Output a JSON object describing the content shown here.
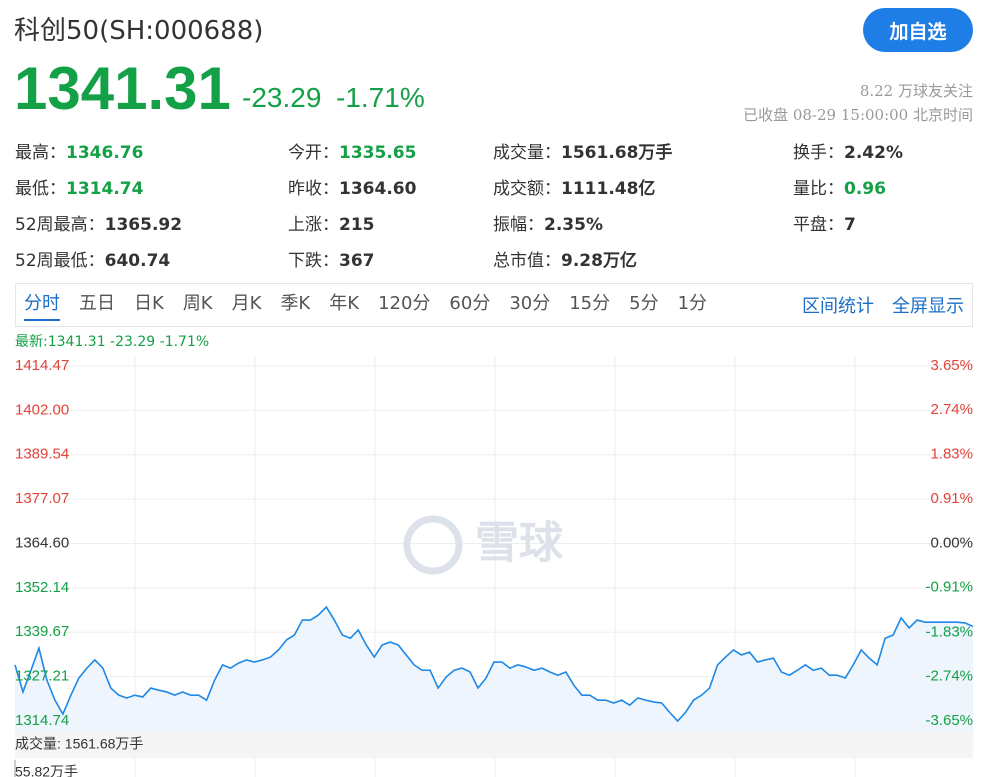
{
  "header": {
    "title": "科创50(SH:000688)",
    "button": "加自选",
    "price": "1341.31",
    "change": "-23.29",
    "change_percent": "-1.71%",
    "followers": "8.22 万球友关注",
    "status": "已收盘 08-29 15:00:00 北京时间"
  },
  "stats": [
    {
      "label": "最高：",
      "value": "1346.76",
      "color": "#14a046"
    },
    {
      "label": "今开：",
      "value": "1335.65",
      "color": "#14a046"
    },
    {
      "label": "成交量：",
      "value": "1561.68万手"
    },
    {
      "label": "换手：",
      "value": "2.42%"
    },
    {
      "label": "最低：",
      "value": "1314.74",
      "color": "#14a046"
    },
    {
      "label": "昨收：",
      "value": "1364.60"
    },
    {
      "label": "成交额：",
      "value": "1111.48亿"
    },
    {
      "label": "量比：",
      "value": "0.96",
      "color": "#14a046"
    },
    {
      "label": "52周最高：",
      "value": "1365.92"
    },
    {
      "label": "上涨：",
      "value": "215"
    },
    {
      "label": "振幅：",
      "value": "2.35%"
    },
    {
      "label": "平盘：",
      "value": "7"
    },
    {
      "label": "52周最低：",
      "value": "640.74"
    },
    {
      "label": "下跌：",
      "value": "367"
    },
    {
      "label": "总市值：",
      "value": "9.28万亿"
    }
  ],
  "tabs": [
    "分时",
    "五日",
    "日K",
    "周K",
    "月K",
    "季K",
    "年K",
    "120分",
    "60分",
    "30分",
    "15分",
    "5分",
    "1分"
  ],
  "tools": [
    "区间统计",
    "全屏显示"
  ],
  "latest": "最新:1341.31 -23.29 -1.71%",
  "watermark": "雪球",
  "chart_data": {
    "type": "line",
    "color": "#1e88e5",
    "grid": true,
    "values": [
      1330.5,
      1322.9,
      1329.0,
      1335.2,
      1326.2,
      1320.6,
      1316.7,
      1322.0,
      1326.8,
      1329.6,
      1331.9,
      1329.6,
      1324.0,
      1322.0,
      1321.2,
      1322.0,
      1321.5,
      1324.0,
      1323.4,
      1322.9,
      1322.0,
      1322.9,
      1322.0,
      1322.0,
      1320.6,
      1326.2,
      1330.5,
      1329.6,
      1331.0,
      1331.9,
      1331.3,
      1331.9,
      1332.7,
      1334.7,
      1337.5,
      1338.9,
      1343.1,
      1343.1,
      1344.5,
      1346.76,
      1343.1,
      1338.9,
      1338.0,
      1340.3,
      1336.1,
      1332.7,
      1336.1,
      1336.9,
      1336.1,
      1333.3,
      1330.5,
      1329.0,
      1329.0,
      1324.0,
      1327.1,
      1329.0,
      1329.6,
      1328.5,
      1324.0,
      1326.8,
      1331.3,
      1331.3,
      1329.6,
      1330.5,
      1329.9,
      1329.0,
      1329.6,
      1328.5,
      1327.6,
      1328.5,
      1324.8,
      1322.0,
      1322.0,
      1320.6,
      1320.6,
      1319.8,
      1320.6,
      1319.2,
      1321.2,
      1320.6,
      1320.1,
      1319.8,
      1317.2,
      1314.74,
      1317.2,
      1320.6,
      1322.0,
      1324.0,
      1330.5,
      1332.7,
      1334.7,
      1333.3,
      1334.1,
      1331.3,
      1331.9,
      1332.4,
      1328.5,
      1327.6,
      1329.0,
      1330.5,
      1329.0,
      1329.6,
      1327.6,
      1327.6,
      1326.8,
      1330.5,
      1334.7,
      1332.4,
      1330.5,
      1338.0,
      1338.9,
      1343.7,
      1340.9,
      1343.1,
      1342.5,
      1342.5,
      1342.5,
      1342.5,
      1342.5,
      1342.3,
      1341.31
    ],
    "ylim": [
      1314.74,
      1414.47
    ],
    "yticks": [
      1414.47,
      {
        "value": 1402,
        "label": "1402.00"
      },
      1389.54,
      1377.07,
      {
        "value": 1364.6,
        "label": "1364.60"
      },
      1352.14,
      1339.67,
      1327.21,
      1314.74
    ],
    "y2lim": [
      -3.65,
      3.65
    ],
    "y2ticks": [
      {
        "value": 3.65,
        "label": "3.65%"
      },
      {
        "value": 2.74,
        "label": "2.74%"
      },
      {
        "value": 1.83,
        "label": "1.83%"
      },
      {
        "value": 0.91,
        "label": "0.91%"
      },
      {
        "value": 0,
        "label": "0.00%"
      },
      {
        "value": -0.91,
        "label": "-0.91%"
      },
      {
        "value": -1.83,
        "label": "-1.83%"
      },
      {
        "value": -2.74,
        "label": "-2.74%"
      },
      {
        "value": -3.65,
        "label": "-3.65%"
      }
    ]
  },
  "volume": {
    "label": "成交量: 1561.68万手",
    "scale": "55.82万手"
  }
}
